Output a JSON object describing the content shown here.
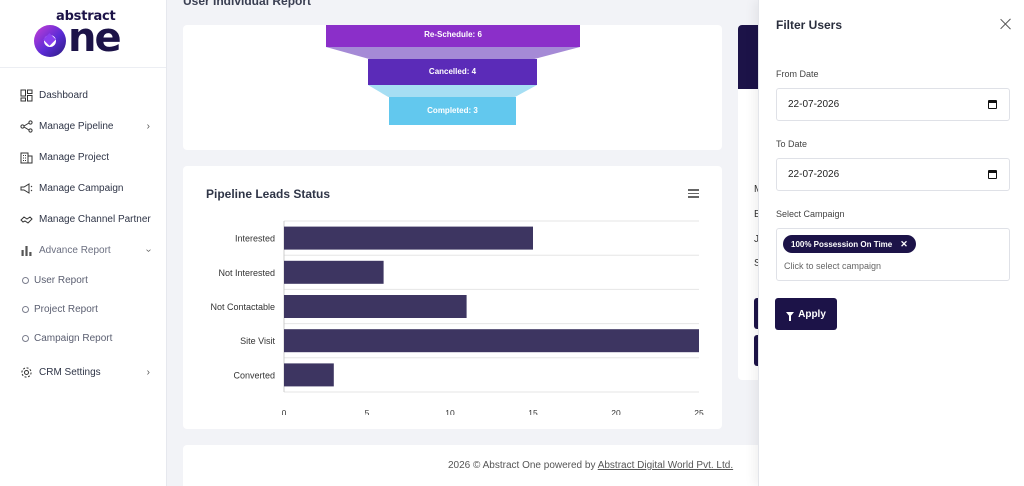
{
  "brand": {
    "small": "abstract",
    "big_rest": "ne"
  },
  "page_title": "User Individual Report",
  "sidebar": {
    "items": [
      {
        "label": "Dashboard",
        "icon": "dashboard-icon"
      },
      {
        "label": "Manage Pipeline",
        "icon": "pipeline-icon"
      },
      {
        "label": "Manage Project",
        "icon": "building-icon"
      },
      {
        "label": "Manage Campaign",
        "icon": "megaphone-icon"
      },
      {
        "label": "Manage Channel Partner",
        "icon": "handshake-icon"
      },
      {
        "label": "Advance Report",
        "icon": "report-chart-icon"
      },
      {
        "label": "CRM Settings",
        "icon": "gear-icon"
      }
    ],
    "sub_items": [
      {
        "label": "User Report"
      },
      {
        "label": "Project Report"
      },
      {
        "label": "Campaign Report"
      }
    ]
  },
  "funnel": {
    "segments": [
      {
        "label": "Re-Schedule: 6",
        "value": 6,
        "color": "#8b2fc9"
      },
      {
        "label": "Cancelled: 4",
        "value": 4,
        "color": "#5b2bb8"
      },
      {
        "label": "Completed: 3",
        "value": 3,
        "color": "#62c8ee"
      }
    ]
  },
  "chart_data": {
    "type": "bar",
    "orientation": "horizontal",
    "title": "Pipeline Leads Status",
    "categories": [
      "Interested",
      "Not Interested",
      "Not Contactable",
      "Site Visit",
      "Converted"
    ],
    "values": [
      15,
      6,
      11,
      25,
      3
    ],
    "xlim": [
      0,
      25
    ],
    "xticks": [
      "0",
      "5",
      "10",
      "15",
      "20",
      "25"
    ],
    "bar_color": "#3d3561",
    "grid": true
  },
  "right_letters": [
    "M",
    "E",
    "J",
    "S"
  ],
  "footer": {
    "prefix": "2026 © Abstract One powered by ",
    "link": "Abstract Digital World Pvt. Ltd."
  },
  "filter_panel": {
    "title": "Filter Users",
    "from_label": "From Date",
    "from_value": "22-07-2026",
    "to_label": "To Date",
    "to_value": "22-07-2026",
    "campaign_label": "Select Campaign",
    "chip": "100% Possession On Time",
    "campaign_placeholder": "Click to select campaign",
    "apply_label": "Apply"
  },
  "colors": {
    "brand_dark": "#1c1348",
    "accent": "#8b2fc9"
  }
}
